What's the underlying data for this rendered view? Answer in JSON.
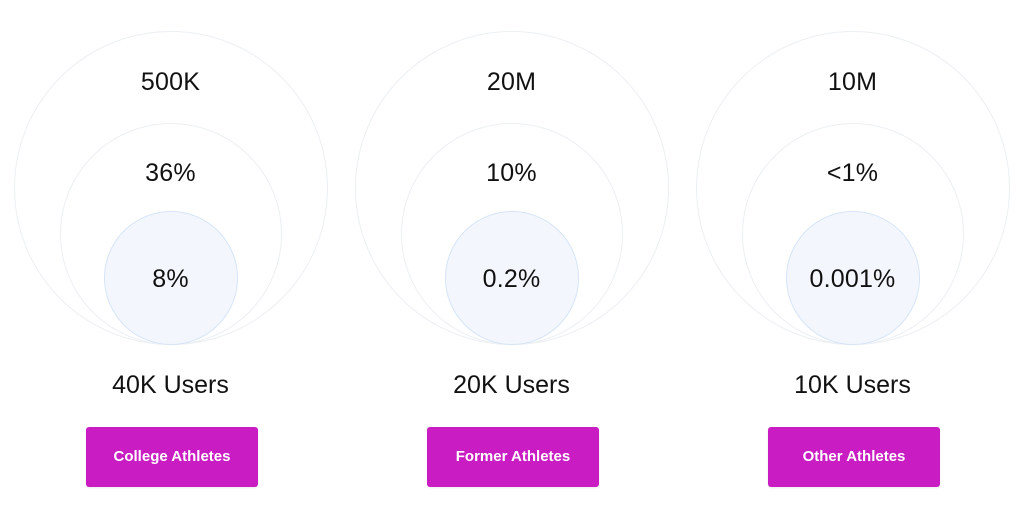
{
  "colors": {
    "button_bg": "#c91cc3",
    "button_text": "#ffffff",
    "outer_ring": "#eceff3",
    "inner_fill": "#f3f7fd",
    "inner_border": "#d6e4f7"
  },
  "columns": [
    {
      "outer_value": "500K",
      "middle_value": "36%",
      "inner_value": "8%",
      "users_label": "40K Users",
      "button_label": "College Athletes"
    },
    {
      "outer_value": "20M",
      "middle_value": "10%",
      "inner_value": "0.2%",
      "users_label": "20K Users",
      "button_label": "Former Athletes"
    },
    {
      "outer_value": "10M",
      "middle_value": "<1%",
      "inner_value": "0.001%",
      "users_label": "10K Users",
      "button_label": "Other Athletes"
    }
  ]
}
